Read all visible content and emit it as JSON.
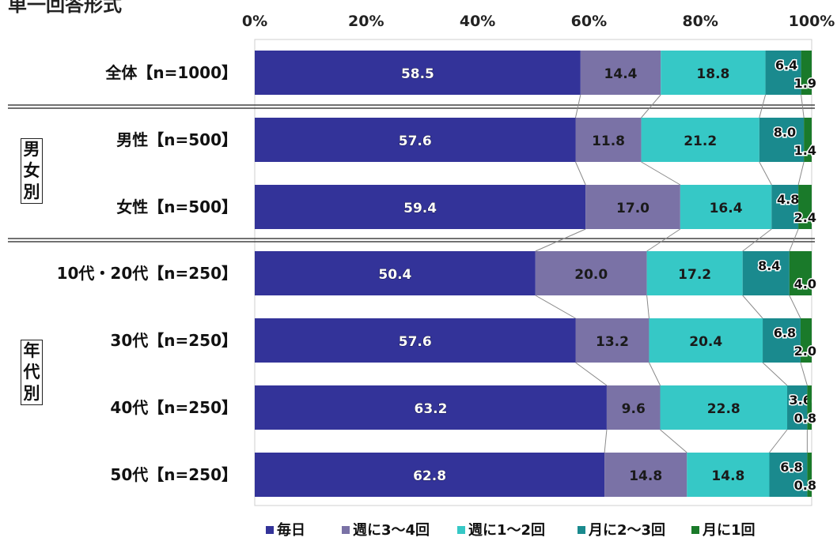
{
  "chart_data": {
    "type": "bar",
    "orientation": "horizontal",
    "stacked": true,
    "percent_scale": true,
    "title_fragment": "単一回答形式",
    "x_ticks": [
      "0%",
      "20%",
      "40%",
      "60%",
      "80%",
      "100%"
    ],
    "xlim": [
      0,
      100
    ],
    "categories": [
      "全体【n=1000】",
      "男性【n=500】",
      "女性【n=500】",
      "10代・20代【n=250】",
      "30代【n=250】",
      "40代【n=250】",
      "50代【n=250】"
    ],
    "series": [
      {
        "name": "毎日",
        "color": "#333399",
        "values": [
          58.5,
          57.6,
          59.4,
          50.4,
          57.6,
          63.2,
          62.8
        ]
      },
      {
        "name": "週に3～4回",
        "color": "#7a72a6",
        "values": [
          14.4,
          11.8,
          17.0,
          20.0,
          13.2,
          9.6,
          14.8
        ]
      },
      {
        "name": "週に1～2回",
        "color": "#36c8c6",
        "values": [
          18.8,
          21.2,
          16.4,
          17.2,
          20.4,
          22.8,
          14.8
        ]
      },
      {
        "name": "月に2～3回",
        "color": "#1a8a8e",
        "values": [
          6.4,
          8.0,
          4.8,
          8.4,
          6.8,
          3.6,
          6.8
        ]
      },
      {
        "name": "月に1回",
        "color": "#1a7a2a",
        "values": [
          1.9,
          1.4,
          2.4,
          4.0,
          2.0,
          0.8,
          0.8
        ]
      }
    ],
    "groups": [
      {
        "label_chars": [
          "男",
          "女",
          "別"
        ]
      },
      {
        "label_chars": [
          "年",
          "代",
          "別"
        ]
      }
    ],
    "legend_position": "bottom",
    "grid": false
  }
}
